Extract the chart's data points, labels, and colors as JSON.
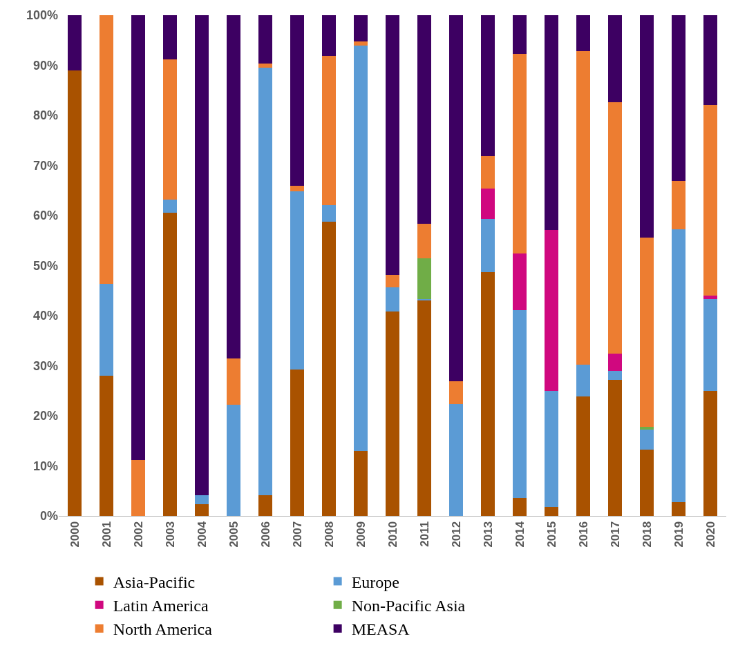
{
  "chart_data": {
    "type": "bar",
    "stacked": true,
    "categories": [
      "2000",
      "2001",
      "2002",
      "2003",
      "2004",
      "2005",
      "2006",
      "2007",
      "2008",
      "2009",
      "2010",
      "2011",
      "2012",
      "2013",
      "2014",
      "2015",
      "2016",
      "2017",
      "2018",
      "2019",
      "2020"
    ],
    "series": [
      {
        "name": "Asia-Pacific",
        "color": "#a95200",
        "values": [
          89,
          28,
          null,
          60.5,
          2.3,
          null,
          4.2,
          29.3,
          58.8,
          13,
          40.8,
          43,
          null,
          48.7,
          3.6,
          1.8,
          23.9,
          27.2,
          13.3,
          2.8,
          25
        ]
      },
      {
        "name": "Europe",
        "color": "#5b9bd5",
        "values": [
          null,
          18.3,
          null,
          2.7,
          1.8,
          22.2,
          85.3,
          35.5,
          3.3,
          81,
          4.8,
          0.3,
          22.3,
          10.6,
          37.5,
          23.1,
          6.3,
          1.7,
          3.9,
          54.5,
          18.3
        ]
      },
      {
        "name": "Latin America",
        "color": "#d0087f",
        "values": [
          null,
          null,
          null,
          null,
          null,
          null,
          null,
          null,
          null,
          null,
          null,
          null,
          null,
          6.1,
          11.3,
          32.2,
          null,
          3.5,
          null,
          null,
          0.7
        ]
      },
      {
        "name": "Non-Pacific Asia",
        "color": "#70ad47",
        "values": [
          null,
          null,
          null,
          null,
          null,
          null,
          null,
          null,
          null,
          null,
          null,
          8.1,
          null,
          null,
          null,
          null,
          null,
          null,
          0.6,
          null,
          null
        ]
      },
      {
        "name": "North America",
        "color": "#ed7d31",
        "values": [
          null,
          53.7,
          11.2,
          28,
          null,
          9.2,
          0.9,
          1.2,
          29.7,
          0.8,
          2.6,
          7,
          4.6,
          6.4,
          39.9,
          null,
          62.6,
          50.2,
          37.8,
          9.6,
          38.1
        ]
      },
      {
        "name": "MEASA",
        "color": "#3d0062",
        "values": [
          11,
          null,
          88.8,
          8.8,
          95.9,
          68.6,
          9.6,
          34,
          8.2,
          5.2,
          51.8,
          41.6,
          73.1,
          28.2,
          7.7,
          42.9,
          7.2,
          17.4,
          44.4,
          33.1,
          17.9
        ]
      }
    ],
    "ylim": [
      0,
      100
    ],
    "yticks": [
      {
        "value": 0,
        "label": "0%"
      },
      {
        "value": 10,
        "label": "10%"
      },
      {
        "value": 20,
        "label": "20%"
      },
      {
        "value": 30,
        "label": "30%"
      },
      {
        "value": 40,
        "label": "40%"
      },
      {
        "value": 50,
        "label": "50%"
      },
      {
        "value": 60,
        "label": "60%"
      },
      {
        "value": 70,
        "label": "70%"
      },
      {
        "value": 80,
        "label": "80%"
      },
      {
        "value": 90,
        "label": "90%"
      },
      {
        "value": 100,
        "label": "100%"
      }
    ],
    "legend": "bottom"
  }
}
